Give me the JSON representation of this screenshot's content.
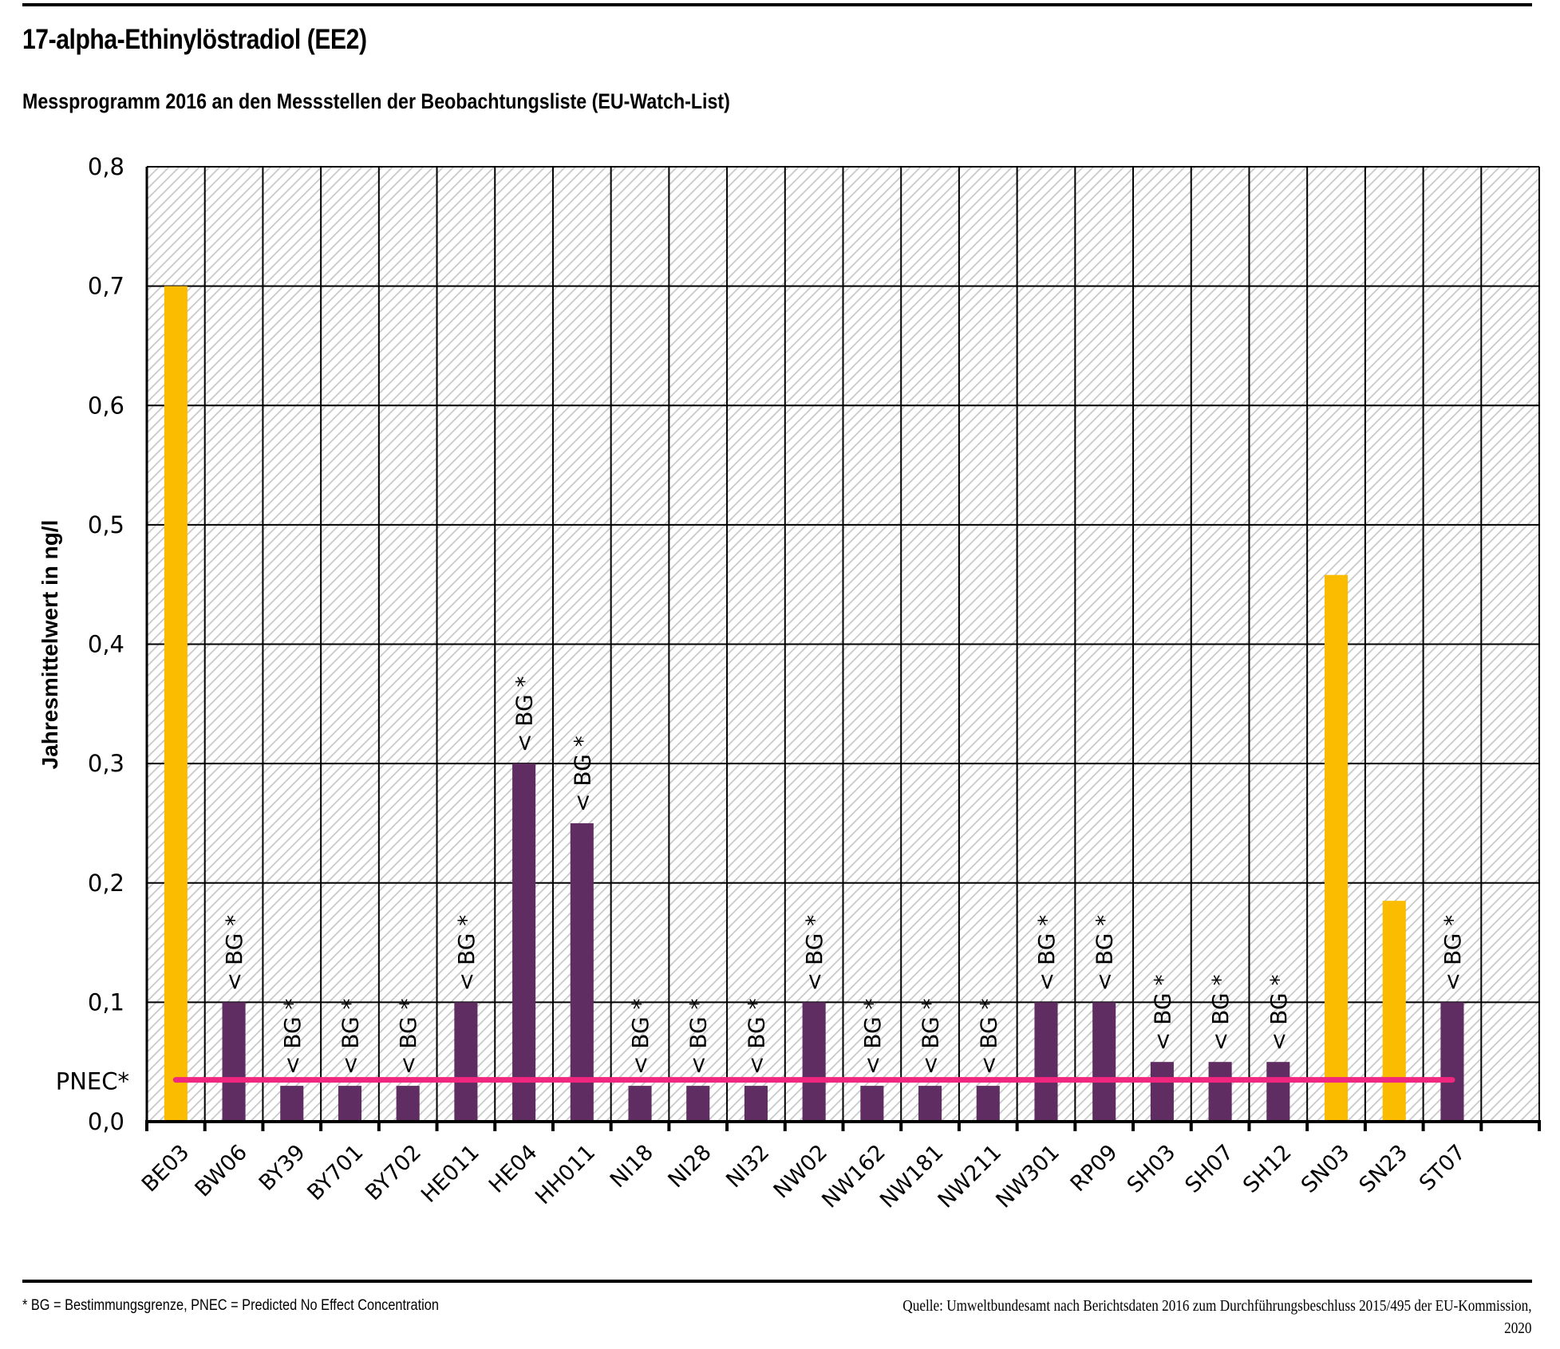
{
  "header": {
    "title": "17-alpha-Ethinylöstradiol (EE2)",
    "subtitle": "Messprogramm 2016 an den Messstellen der Beobachtungsliste (EU-Watch-List)"
  },
  "footer": {
    "note": "* BG = Bestimmungsgrenze, PNEC = Predicted No Effect Concentration",
    "source_line1": "Quelle: Umweltbundesamt nach Berichtsdaten 2016 zum Durchführungsbeschluss 2015/495 der EU-Kommission,",
    "source_line2": "2020"
  },
  "chart_data": {
    "type": "bar",
    "title": "17-alpha-Ethinylöstradiol (EE2)",
    "xlabel": "",
    "ylabel": "Jahresmittelwert in ng/l",
    "ylim": [
      0,
      0.8
    ],
    "yticks": [
      0,
      0.1,
      0.2,
      0.3,
      0.4,
      0.5,
      0.6,
      0.7,
      0.8
    ],
    "ytick_labels": [
      "0,0",
      "0,1",
      "0,2",
      "0,3",
      "0,4",
      "0,5",
      "0,6",
      "0,7",
      "0,8"
    ],
    "grid": true,
    "colors": {
      "measured": "#fbbc00",
      "below_bg": "#5f2d61",
      "pnec": "#f0267f",
      "grid": "#000000",
      "hatch": "#c8c8c8"
    },
    "categories": [
      "BE03",
      "BW06",
      "BY39",
      "BY701",
      "BY702",
      "HE011",
      "HE04",
      "HH011",
      "NI18",
      "NI28",
      "NI32",
      "NW02",
      "NW162",
      "NW181",
      "NW211",
      "NW301",
      "RP09",
      "SH03",
      "SH07",
      "SH12",
      "SN03",
      "SN23",
      "ST07"
    ],
    "values": [
      0.7,
      0.1,
      0.03,
      0.03,
      0.03,
      0.1,
      0.3,
      0.25,
      0.03,
      0.03,
      0.03,
      0.1,
      0.03,
      0.03,
      0.03,
      0.1,
      0.1,
      0.05,
      0.05,
      0.05,
      0.458,
      0.185,
      0.1
    ],
    "below_bg": [
      false,
      true,
      true,
      true,
      true,
      true,
      true,
      true,
      true,
      true,
      true,
      true,
      true,
      true,
      true,
      true,
      true,
      true,
      true,
      true,
      false,
      false,
      true
    ],
    "annotation_label": "< BG *",
    "reference_line": {
      "label": "PNEC*",
      "value": 0.035
    },
    "extra_empty_slots": 1
  }
}
